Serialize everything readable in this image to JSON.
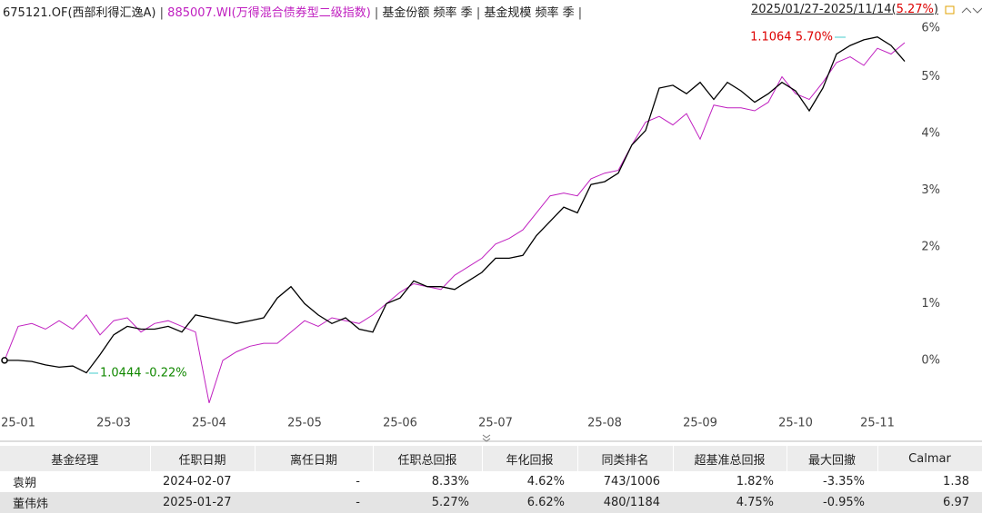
{
  "chart_data": {
    "type": "line",
    "categories": [
      null,
      "25-01",
      null,
      null,
      null,
      null,
      null,
      null,
      "25-03",
      null,
      null,
      null,
      null,
      null,
      null,
      "25-04",
      null,
      null,
      null,
      null,
      null,
      null,
      "25-05",
      null,
      null,
      null,
      null,
      null,
      null,
      "25-06",
      null,
      null,
      null,
      null,
      null,
      null,
      "25-07",
      null,
      null,
      null,
      null,
      null,
      null,
      null,
      "25-08",
      null,
      null,
      null,
      null,
      null,
      null,
      "25-09",
      null,
      null,
      null,
      null,
      null,
      null,
      "25-10",
      null,
      null,
      null,
      null,
      null,
      "25-11",
      null,
      null
    ],
    "series": [
      {
        "name": "675121.OF(西部利得汇逸A)",
        "color": "#000000",
        "values": [
          0,
          0,
          -0.02,
          -0.08,
          -0.12,
          -0.1,
          -0.22,
          0.1,
          0.45,
          0.6,
          0.55,
          0.55,
          0.6,
          0.5,
          0.8,
          0.75,
          0.7,
          0.65,
          0.7,
          0.75,
          1.1,
          1.3,
          1.0,
          0.8,
          0.65,
          0.75,
          0.55,
          0.5,
          1.0,
          1.1,
          1.4,
          1.3,
          1.3,
          1.25,
          1.4,
          1.55,
          1.8,
          1.8,
          1.85,
          2.2,
          2.45,
          2.7,
          2.6,
          3.1,
          3.15,
          3.3,
          3.8,
          4.05,
          4.8,
          4.85,
          4.7,
          4.9,
          4.6,
          4.9,
          4.75,
          4.55,
          4.7,
          4.9,
          4.75,
          4.4,
          4.8,
          5.4,
          5.55,
          5.65,
          5.7,
          5.55,
          5.27
        ]
      },
      {
        "name": "885007.WI(万得混合债券型二级指数)",
        "color": "#c020c0",
        "values": [
          0,
          0.6,
          0.65,
          0.55,
          0.7,
          0.55,
          0.8,
          0.45,
          0.7,
          0.75,
          0.5,
          0.65,
          0.7,
          0.6,
          0.5,
          -0.75,
          0.0,
          0.15,
          0.25,
          0.3,
          0.3,
          0.5,
          0.7,
          0.6,
          0.75,
          0.7,
          0.65,
          0.8,
          1.0,
          1.2,
          1.35,
          1.3,
          1.25,
          1.5,
          1.65,
          1.8,
          2.05,
          2.15,
          2.3,
          2.6,
          2.9,
          2.95,
          2.9,
          3.2,
          3.3,
          3.35,
          3.8,
          4.2,
          4.3,
          4.15,
          4.35,
          3.9,
          4.5,
          4.45,
          4.45,
          4.4,
          4.55,
          5.0,
          4.7,
          4.6,
          4.9,
          5.25,
          5.35,
          5.2,
          5.5,
          5.4,
          5.6
        ]
      }
    ],
    "ylim": [
      -0.93,
      6
    ],
    "yticks": [
      {
        "value": 0,
        "label": "0%"
      },
      {
        "value": 1,
        "label": "1%"
      },
      {
        "value": 2,
        "label": "2%"
      },
      {
        "value": 3,
        "label": "3%"
      },
      {
        "value": 4,
        "label": "4%"
      },
      {
        "value": 5,
        "label": "5%"
      },
      {
        "value": 6,
        "label": "6%"
      }
    ],
    "grid": false,
    "annotations": [
      "1.1064 5.70%",
      "1.0444 -0.22%"
    ],
    "header_items": [
      "基金份额 频率 季",
      "基金规模 频率 季"
    ],
    "date_range": "2025/01/27-2025/11/14",
    "range_return": "5.27%"
  },
  "table": {
    "header": [
      "基金经理",
      "任职日期",
      "离任日期",
      "任职总回报",
      "年化回报",
      "同类排名",
      "超基准总回报",
      "最大回撤",
      "Calmar"
    ],
    "rows": [
      [
        "袁朔",
        "2024-02-07",
        "-",
        "8.33%",
        "4.62%",
        "743/1006",
        "1.82%",
        "-3.35%",
        "1.38"
      ],
      [
        "董伟炜",
        "2025-01-27",
        "-",
        "5.27%",
        "6.62%",
        "480/1184",
        "4.75%",
        "-0.95%",
        "6.97"
      ]
    ]
  }
}
